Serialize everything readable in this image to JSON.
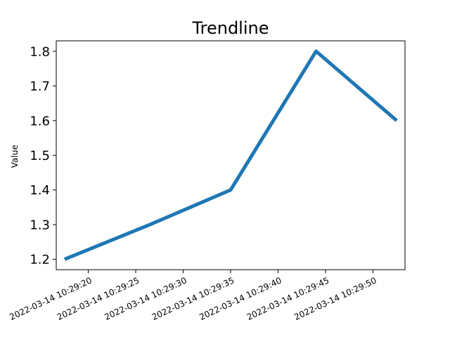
{
  "chart_data": {
    "type": "line",
    "title": "Trendline",
    "xlabel": "",
    "ylabel": "Value",
    "x": [
      "2022-03-14 10:29:17.5",
      "2022-03-14 10:29:26.5",
      "2022-03-14 10:29:35.0",
      "2022-03-14 10:29:44.0",
      "2022-03-14 10:29:52.5"
    ],
    "series": [
      {
        "values": [
          1.2,
          1.3,
          1.4,
          1.8,
          1.6
        ],
        "color": "#1f77b4"
      }
    ],
    "x_ticks": [
      "2022-03-14 10:29:20",
      "2022-03-14 10:29:25",
      "2022-03-14 10:29:30",
      "2022-03-14 10:29:35",
      "2022-03-14 10:29:40",
      "2022-03-14 10:29:45",
      "2022-03-14 10:29:50"
    ],
    "y_ticks": [
      "1.2",
      "1.3",
      "1.4",
      "1.5",
      "1.6",
      "1.7",
      "1.8"
    ],
    "xlim": [
      "2022-03-14 10:29:16.625",
      "2022-03-14 10:29:53.375"
    ],
    "ylim": [
      1.17,
      1.83
    ],
    "grid": false,
    "legend": false
  }
}
